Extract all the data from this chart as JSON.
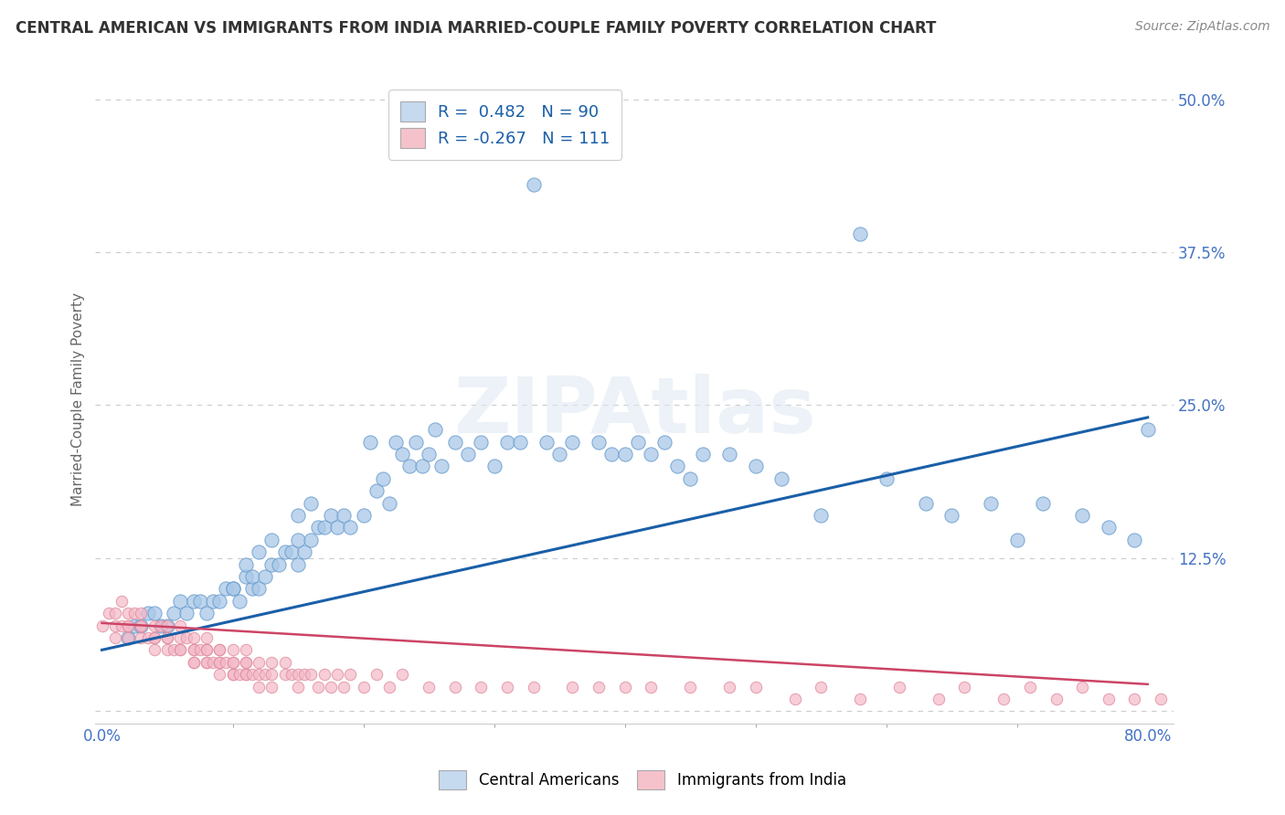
{
  "title": "CENTRAL AMERICAN VS IMMIGRANTS FROM INDIA MARRIED-COUPLE FAMILY POVERTY CORRELATION CHART",
  "source_text": "Source: ZipAtlas.com",
  "ylabel": "Married-Couple Family Poverty",
  "r_blue": 0.482,
  "n_blue": 90,
  "r_pink": -0.267,
  "n_pink": 111,
  "xlim": [
    -0.005,
    0.82
  ],
  "ylim": [
    -0.01,
    0.52
  ],
  "yticks": [
    0.0,
    0.125,
    0.25,
    0.375,
    0.5
  ],
  "ytick_labels": [
    "",
    "12.5%",
    "25.0%",
    "37.5%",
    "50.0%"
  ],
  "xtick_major": [
    0.0,
    0.8
  ],
  "xtick_major_labels": [
    "0.0%",
    "80.0%"
  ],
  "xtick_minor": [
    0.1,
    0.2,
    0.3,
    0.4,
    0.5,
    0.6,
    0.7
  ],
  "blue_color": "#a8c8e8",
  "blue_edge_color": "#6699cc",
  "pink_color": "#f4b8c8",
  "pink_edge_color": "#dd8899",
  "blue_line_color": "#1a5fa8",
  "pink_line_color": "#cc4466",
  "legend_blue_face": "#c5d9ef",
  "legend_pink_face": "#f5c2cb",
  "watermark": "ZIPAtlas",
  "background_color": "#ffffff",
  "grid_color": "#cccccc",
  "title_color": "#333333",
  "axis_label_color": "#666666",
  "tick_label_color": "#4472c4",
  "blue_scatter_x": [
    0.02,
    0.025,
    0.03,
    0.035,
    0.04,
    0.045,
    0.05,
    0.055,
    0.06,
    0.065,
    0.07,
    0.075,
    0.08,
    0.085,
    0.09,
    0.095,
    0.1,
    0.105,
    0.1,
    0.11,
    0.115,
    0.11,
    0.115,
    0.12,
    0.125,
    0.12,
    0.13,
    0.135,
    0.13,
    0.14,
    0.145,
    0.15,
    0.155,
    0.15,
    0.15,
    0.16,
    0.165,
    0.16,
    0.17,
    0.175,
    0.18,
    0.185,
    0.19,
    0.2,
    0.205,
    0.21,
    0.215,
    0.22,
    0.225,
    0.23,
    0.235,
    0.24,
    0.245,
    0.25,
    0.255,
    0.26,
    0.27,
    0.28,
    0.29,
    0.3,
    0.31,
    0.32,
    0.33,
    0.34,
    0.35,
    0.36,
    0.38,
    0.39,
    0.4,
    0.41,
    0.42,
    0.43,
    0.44,
    0.45,
    0.46,
    0.48,
    0.5,
    0.52,
    0.55,
    0.58,
    0.6,
    0.63,
    0.65,
    0.68,
    0.7,
    0.72,
    0.75,
    0.77,
    0.79,
    0.8
  ],
  "blue_scatter_y": [
    0.06,
    0.07,
    0.07,
    0.08,
    0.08,
    0.07,
    0.07,
    0.08,
    0.09,
    0.08,
    0.09,
    0.09,
    0.08,
    0.09,
    0.09,
    0.1,
    0.1,
    0.09,
    0.1,
    0.11,
    0.1,
    0.12,
    0.11,
    0.1,
    0.11,
    0.13,
    0.12,
    0.12,
    0.14,
    0.13,
    0.13,
    0.12,
    0.13,
    0.16,
    0.14,
    0.14,
    0.15,
    0.17,
    0.15,
    0.16,
    0.15,
    0.16,
    0.15,
    0.16,
    0.22,
    0.18,
    0.19,
    0.17,
    0.22,
    0.21,
    0.2,
    0.22,
    0.2,
    0.21,
    0.23,
    0.2,
    0.22,
    0.21,
    0.22,
    0.2,
    0.22,
    0.22,
    0.43,
    0.22,
    0.21,
    0.22,
    0.22,
    0.21,
    0.21,
    0.22,
    0.21,
    0.22,
    0.2,
    0.19,
    0.21,
    0.21,
    0.2,
    0.19,
    0.16,
    0.39,
    0.19,
    0.17,
    0.16,
    0.17,
    0.14,
    0.17,
    0.16,
    0.15,
    0.14,
    0.23
  ],
  "pink_scatter_x": [
    0.0,
    0.005,
    0.01,
    0.01,
    0.01,
    0.015,
    0.015,
    0.02,
    0.02,
    0.02,
    0.02,
    0.025,
    0.03,
    0.03,
    0.03,
    0.03,
    0.035,
    0.04,
    0.04,
    0.04,
    0.04,
    0.045,
    0.05,
    0.05,
    0.05,
    0.05,
    0.055,
    0.06,
    0.06,
    0.06,
    0.06,
    0.065,
    0.07,
    0.07,
    0.07,
    0.07,
    0.07,
    0.075,
    0.08,
    0.08,
    0.08,
    0.08,
    0.08,
    0.085,
    0.09,
    0.09,
    0.09,
    0.09,
    0.09,
    0.095,
    0.1,
    0.1,
    0.1,
    0.1,
    0.1,
    0.105,
    0.11,
    0.11,
    0.11,
    0.11,
    0.11,
    0.115,
    0.12,
    0.12,
    0.12,
    0.125,
    0.13,
    0.13,
    0.13,
    0.14,
    0.14,
    0.145,
    0.15,
    0.15,
    0.155,
    0.16,
    0.165,
    0.17,
    0.175,
    0.18,
    0.185,
    0.19,
    0.2,
    0.21,
    0.22,
    0.23,
    0.25,
    0.27,
    0.29,
    0.31,
    0.33,
    0.36,
    0.38,
    0.4,
    0.42,
    0.45,
    0.48,
    0.5,
    0.53,
    0.55,
    0.58,
    0.61,
    0.64,
    0.66,
    0.69,
    0.71,
    0.73,
    0.75,
    0.77,
    0.79,
    0.81
  ],
  "pink_scatter_y": [
    0.07,
    0.08,
    0.07,
    0.08,
    0.06,
    0.07,
    0.09,
    0.07,
    0.08,
    0.06,
    0.07,
    0.08,
    0.07,
    0.06,
    0.08,
    0.07,
    0.06,
    0.06,
    0.07,
    0.05,
    0.06,
    0.07,
    0.06,
    0.05,
    0.06,
    0.07,
    0.05,
    0.05,
    0.06,
    0.07,
    0.05,
    0.06,
    0.05,
    0.04,
    0.06,
    0.05,
    0.04,
    0.05,
    0.04,
    0.05,
    0.06,
    0.04,
    0.05,
    0.04,
    0.04,
    0.05,
    0.03,
    0.04,
    0.05,
    0.04,
    0.03,
    0.04,
    0.05,
    0.03,
    0.04,
    0.03,
    0.04,
    0.03,
    0.05,
    0.03,
    0.04,
    0.03,
    0.04,
    0.03,
    0.02,
    0.03,
    0.04,
    0.03,
    0.02,
    0.03,
    0.04,
    0.03,
    0.03,
    0.02,
    0.03,
    0.03,
    0.02,
    0.03,
    0.02,
    0.03,
    0.02,
    0.03,
    0.02,
    0.03,
    0.02,
    0.03,
    0.02,
    0.02,
    0.02,
    0.02,
    0.02,
    0.02,
    0.02,
    0.02,
    0.02,
    0.02,
    0.02,
    0.02,
    0.01,
    0.02,
    0.01,
    0.02,
    0.01,
    0.02,
    0.01,
    0.02,
    0.01,
    0.02,
    0.01,
    0.01,
    0.01
  ]
}
